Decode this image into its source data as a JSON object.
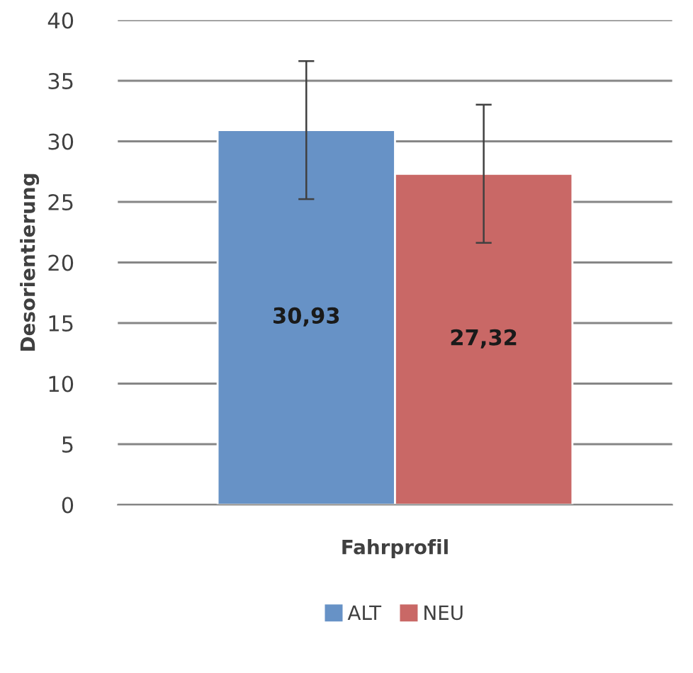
{
  "chart_data": {
    "type": "bar",
    "xlabel": "Fahrprofil",
    "ylabel": "Desorientierung",
    "categories": [
      null
    ],
    "series": [
      {
        "name": "ALT",
        "color": "#6792c6",
        "values": [
          30.93
        ],
        "errors": [
          5.7
        ],
        "value_labels": [
          "30,93"
        ]
      },
      {
        "name": "NEU",
        "color": "#c96866",
        "values": [
          27.32
        ],
        "errors": [
          5.7
        ],
        "value_labels": [
          "27,32"
        ]
      }
    ],
    "ylim": [
      0,
      40
    ],
    "yticks": [
      0,
      5,
      10,
      15,
      20,
      25,
      30,
      35,
      40
    ],
    "grid": "y",
    "legend": "bottom"
  }
}
